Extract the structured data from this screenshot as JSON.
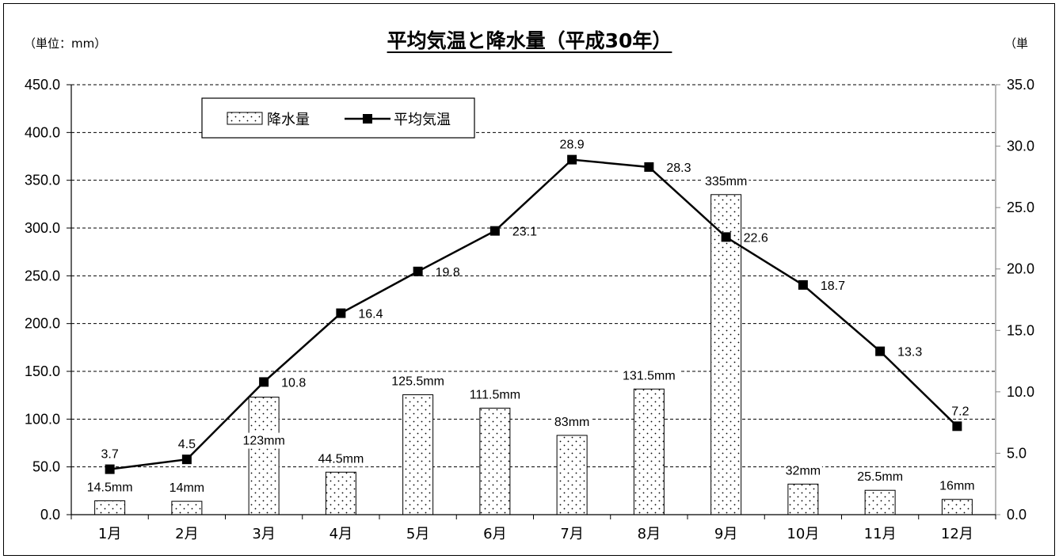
{
  "title": "平均気温と降水量（平成30年）",
  "unit_left": "（単位：mm）",
  "unit_right": "（単",
  "legend": {
    "precip": "降水量",
    "temp": "平均気温"
  },
  "chart_data": {
    "type": "bar",
    "title": "平均気温と降水量（平成30年）",
    "categories": [
      "1月",
      "2月",
      "3月",
      "4月",
      "5月",
      "6月",
      "7月",
      "8月",
      "9月",
      "10月",
      "11月",
      "12月"
    ],
    "series": [
      {
        "name": "降水量",
        "type": "bar",
        "axis": "left",
        "values": [
          14.5,
          14,
          123,
          44.5,
          125.5,
          111.5,
          83,
          131.5,
          335,
          32,
          25.5,
          16
        ],
        "labels": [
          "14.5mm",
          "14mm",
          "123mm",
          "44.5mm",
          "125.5mm",
          "111.5mm",
          "83mm",
          "131.5mm",
          "335mm",
          "32mm",
          "25.5mm",
          "16mm"
        ]
      },
      {
        "name": "平均気温",
        "type": "line",
        "axis": "right",
        "values": [
          3.7,
          4.5,
          10.8,
          16.4,
          19.8,
          23.1,
          28.9,
          28.3,
          22.6,
          18.7,
          13.3,
          7.2
        ],
        "labels": [
          "3.7",
          "4.5",
          "10.8",
          "16.4",
          "19.8",
          "23.1",
          "28.9",
          "28.3",
          "22.6",
          "18.7",
          "13.3",
          "7.2"
        ]
      }
    ],
    "ylim_left": [
      0,
      450
    ],
    "ylim_right": [
      0,
      35
    ],
    "yticks_left": [
      "0.0",
      "50.0",
      "100.0",
      "150.0",
      "200.0",
      "250.0",
      "300.0",
      "350.0",
      "400.0",
      "450.0"
    ],
    "yticks_right": [
      "0.0",
      "5.0",
      "10.0",
      "15.0",
      "20.0",
      "25.0",
      "30.0",
      "35.0"
    ],
    "grid": "horizontal dashed",
    "legend_position": "top-left"
  }
}
